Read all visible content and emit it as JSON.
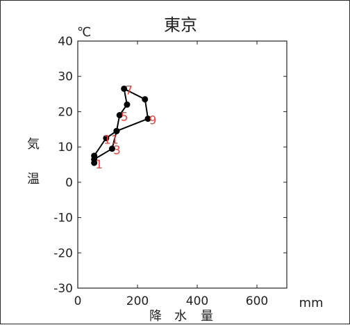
{
  "chart_data": {
    "type": "line",
    "title": "東京",
    "x_unit": "mm",
    "y_unit": "℃",
    "xlabel": "降水量",
    "ylabel": "気温",
    "xlim": [
      0,
      700
    ],
    "ylim": [
      -30,
      40
    ],
    "xticks": [
      0,
      200,
      400,
      600
    ],
    "yticks": [
      -30,
      -20,
      -10,
      0,
      10,
      20,
      30,
      40
    ],
    "grid": false,
    "colors": {
      "line": "#000000",
      "marker": "#000000",
      "point_label": "#ff3b3b"
    },
    "series": [
      {
        "points": [
          {
            "x": 55,
            "y": 5.5,
            "label": "1"
          },
          {
            "x": 55,
            "y": 6.5,
            "label": ""
          },
          {
            "x": 115,
            "y": 9.5,
            "label": "3"
          },
          {
            "x": 130,
            "y": 14.5,
            "label": ""
          },
          {
            "x": 140,
            "y": 19,
            "label": "5"
          },
          {
            "x": 165,
            "y": 22,
            "label": ""
          },
          {
            "x": 155,
            "y": 26.5,
            "label": "7"
          },
          {
            "x": 225,
            "y": 23.5,
            "label": ""
          },
          {
            "x": 235,
            "y": 18,
            "label": "9"
          },
          {
            "x": 130,
            "y": 14.5,
            "label": ""
          },
          {
            "x": 95,
            "y": 12.5,
            "label": "11"
          },
          {
            "x": 55,
            "y": 7.5,
            "label": ""
          }
        ]
      }
    ]
  }
}
